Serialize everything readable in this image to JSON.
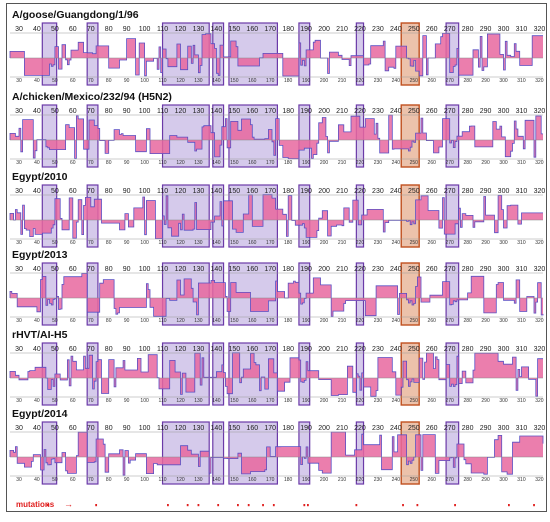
{
  "figure": {
    "mutations_label": "mutations",
    "mutation_arrow": "→"
  },
  "colors": {
    "profile_fill": "#e8679f",
    "profile_line": "#5a4fc4",
    "highlight_fill": "#b9a6de",
    "highlight_stroke": "#6b3aa8",
    "focus_fill": "#e2a27e",
    "focus_stroke": "#c0501f",
    "mutation_color": "#e0201f",
    "frame": "#555555"
  },
  "chart_data": {
    "type": "area",
    "x_ticks": [
      30,
      40,
      50,
      60,
      70,
      80,
      90,
      100,
      110,
      120,
      130,
      140,
      150,
      160,
      170,
      180,
      190,
      200,
      210,
      220,
      230,
      240,
      250,
      260,
      270,
      280,
      290,
      300,
      310,
      320
    ],
    "xlim": [
      25,
      322
    ],
    "highlighted_regions": [
      [
        43,
        51
      ],
      [
        68,
        74
      ],
      [
        110,
        136
      ],
      [
        138,
        144
      ],
      [
        147,
        174
      ],
      [
        186,
        192
      ],
      [
        218,
        222
      ],
      [
        268,
        275
      ]
    ],
    "focus_region": [
      243,
      253
    ],
    "mutation_positions": [
      46,
      73,
      113,
      124,
      130,
      141,
      152,
      158,
      166,
      172,
      189,
      191,
      218,
      244,
      252,
      273,
      303,
      317
    ],
    "panels": [
      {
        "title": "A/goose/Guangdong/1/96"
      },
      {
        "title": "A/chicken/Mexico/232/94 (H5N2)"
      },
      {
        "title": "Egypt/2010"
      },
      {
        "title": "Egypt/2013"
      },
      {
        "title": "rHVT/AI-H5"
      },
      {
        "title": "Egypt/2014"
      }
    ]
  }
}
